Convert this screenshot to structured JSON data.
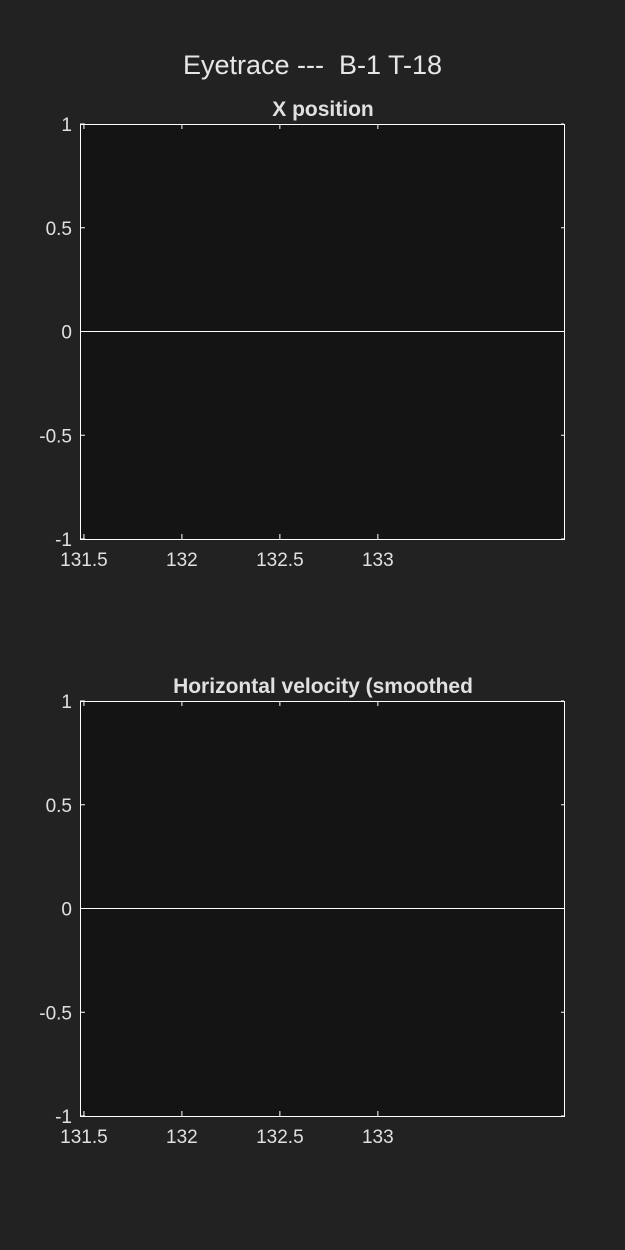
{
  "figure": {
    "title": "Eyetrace ---  B-1 T-18",
    "background": "#222222",
    "axes_background": "#141414",
    "axes_color": "#ffffff"
  },
  "chart_data": [
    {
      "type": "line",
      "title": "X position",
      "xlabel": "",
      "ylabel": "",
      "xlim": [
        131.48,
        133.95
      ],
      "ylim": [
        -1,
        1
      ],
      "xticks": [
        131.5,
        132,
        132.5,
        133
      ],
      "xtick_labels": [
        "131.5",
        "132",
        "132.5",
        "133"
      ],
      "yticks": [
        1,
        0.5,
        0,
        -0.5,
        -1
      ],
      "ytick_labels": [
        "1",
        "0.5",
        "0",
        "-0.5",
        "-1"
      ],
      "grid": false,
      "series": [
        {
          "x": [
            131.48,
            133.95
          ],
          "y": [
            0,
            0
          ],
          "color": "#ffffff"
        }
      ]
    },
    {
      "type": "line",
      "title": "Horizontal velocity (smoothed",
      "xlabel": "",
      "ylabel": "",
      "xlim": [
        131.48,
        133.95
      ],
      "ylim": [
        -1,
        1
      ],
      "xticks": [
        131.5,
        132,
        132.5,
        133
      ],
      "xtick_labels": [
        "131.5",
        "132",
        "132.5",
        "133"
      ],
      "yticks": [
        1,
        0.5,
        0,
        -0.5,
        -1
      ],
      "ytick_labels": [
        "1",
        "0.5",
        "0",
        "-0.5",
        "-1"
      ],
      "grid": false,
      "series": [
        {
          "x": [
            131.48,
            133.95
          ],
          "y": [
            0,
            0
          ],
          "color": "#ffffff"
        }
      ]
    }
  ]
}
